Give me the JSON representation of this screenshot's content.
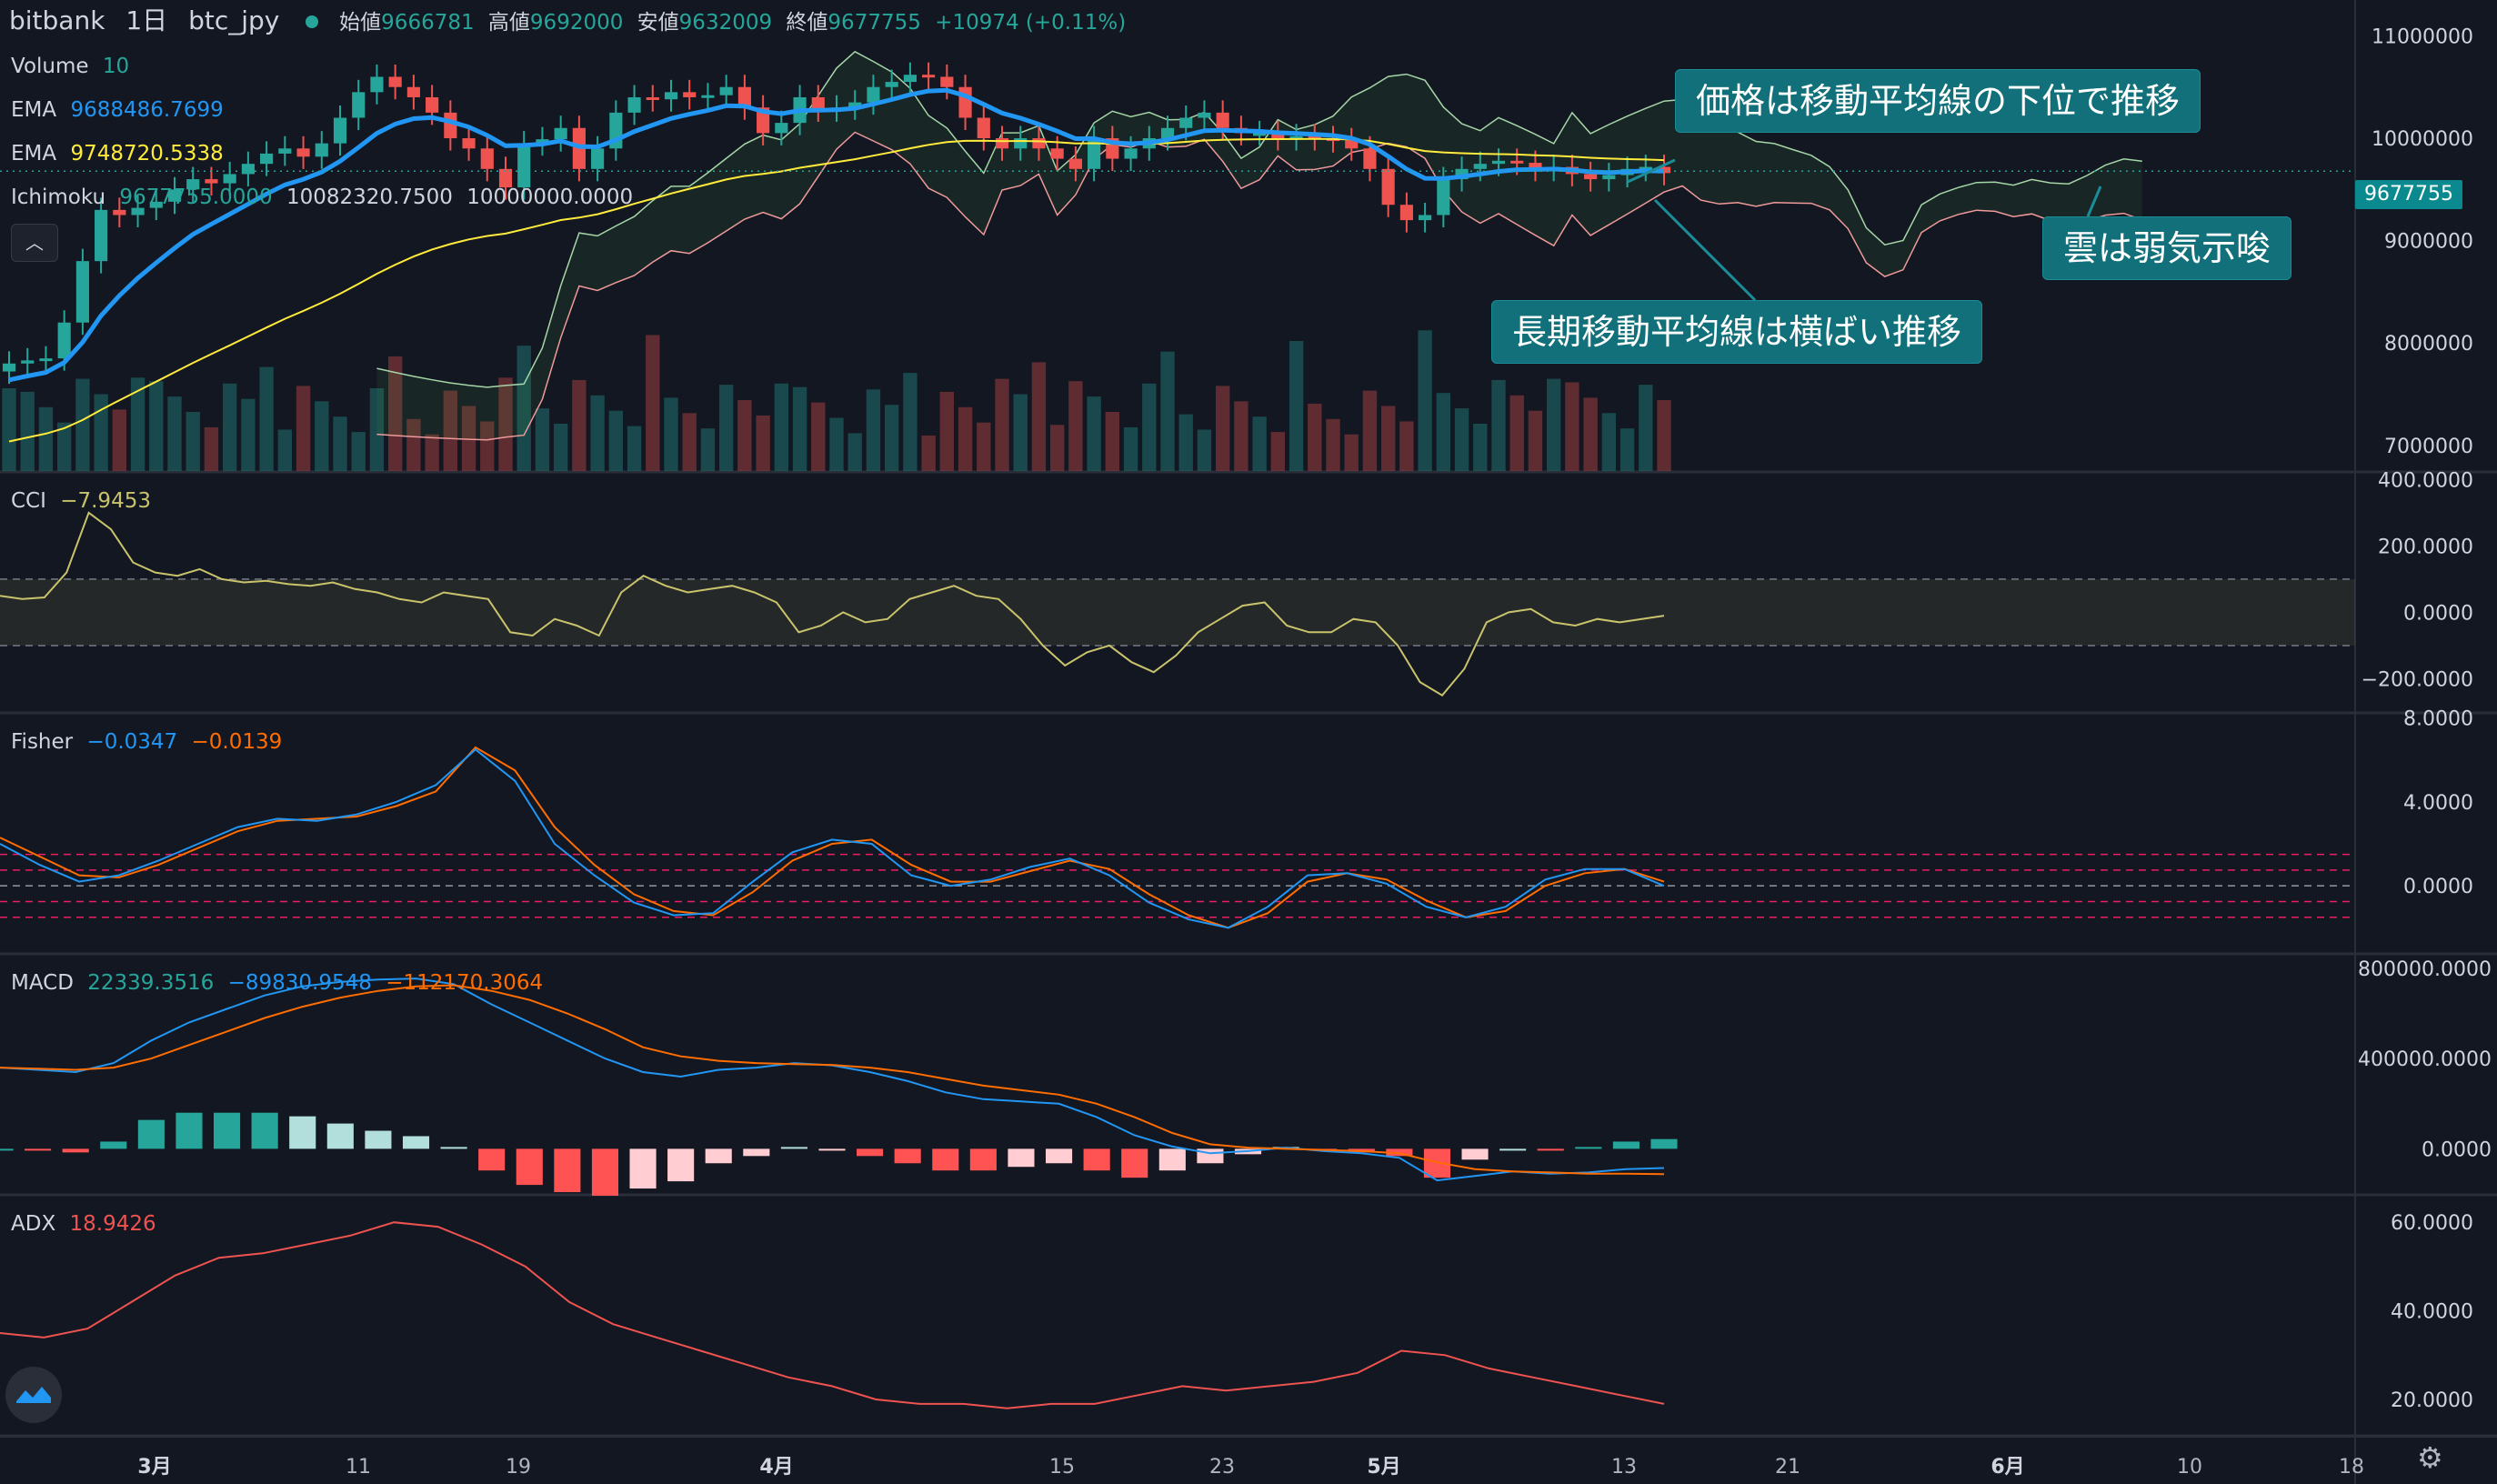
{
  "header": {
    "exchange": "bitbank",
    "interval": "1日",
    "symbol": "btc_jpy",
    "open_label": "始値",
    "open": "9666781",
    "high_label": "高値",
    "high": "9692000",
    "low_label": "安値",
    "low": "9632009",
    "close_label": "終値",
    "close": "9677755",
    "change": "+10974 (+0.11%)"
  },
  "legend": {
    "volume_label": "Volume",
    "volume_value": "10",
    "ema1_label": "EMA",
    "ema1_value": "9688486.7699",
    "ema2_label": "EMA",
    "ema2_value": "9748720.5338",
    "ichimoku_label": "Ichimoku",
    "ichimoku_v1": "9677755.0000",
    "ichimoku_v2": "10082320.7500",
    "ichimoku_v3": "10000000.0000",
    "cci_label": "CCI",
    "cci_value": "−7.9453",
    "fisher_label": "Fisher",
    "fisher_v1": "−0.0347",
    "fisher_v2": "−0.0139",
    "macd_label": "MACD",
    "macd_v1": "22339.3516",
    "macd_v2": "−89830.9548",
    "macd_v3": "−112170.3064",
    "adx_label": "ADX",
    "adx_value": "18.9426"
  },
  "annotations": {
    "a1": "価格は移動平均線の下位で推移",
    "a2": "雲は弱気示唆",
    "a3": "長期移動平均線は横ばい推移"
  },
  "last_price_tag": "9677755",
  "colors": {
    "background": "#131722",
    "up": "#26a69a",
    "down": "#ef5350",
    "ema_fast": "#2196f3",
    "ema_slow": "#ffeb3b",
    "cci": "#c9c36b",
    "fisher1": "#2196f3",
    "fisher2": "#ff6d00",
    "adx": "#ef5350",
    "callout": "#11707a"
  },
  "chart_data": {
    "type": "candlestick",
    "x_ticks": [
      "3月",
      "11",
      "19",
      "4月",
      "15",
      "23",
      "5月",
      "13",
      "21",
      "6月",
      "10",
      "18"
    ],
    "price_axis": [
      "11000000",
      "10000000",
      "9000000",
      "8000000",
      "7000000"
    ],
    "close": [
      7800000,
      7830000,
      7850000,
      8200000,
      8800000,
      9300000,
      9250000,
      9320000,
      9380000,
      9500000,
      9600000,
      9560000,
      9650000,
      9750000,
      9850000,
      9900000,
      9820000,
      9950000,
      10200000,
      10450000,
      10600000,
      10500000,
      10400000,
      10250000,
      10000000,
      9900000,
      9700000,
      9520000,
      9950000,
      9990000,
      10100000,
      9700000,
      9900000,
      10250000,
      10400000,
      10380000,
      10450000,
      10400000,
      10420000,
      10500000,
      10300000,
      10050000,
      10150000,
      10400000,
      10280000,
      10300000,
      10350000,
      10500000,
      10550000,
      10620000,
      10600000,
      10500000,
      10200000,
      10000000,
      9900000,
      10000000,
      9900000,
      9800000,
      9700000,
      10000000,
      9800000,
      9900000,
      10000000,
      10100000,
      10200000,
      10250000,
      10100000,
      10050000,
      10050000,
      10000000,
      10020000,
      10000000,
      9980000,
      9900000,
      9700000,
      9350000,
      9200000,
      9250000,
      9600000,
      9700000,
      9750000,
      9780000,
      9760000,
      9700000,
      9720000,
      9650000,
      9600000,
      9640000,
      9700000,
      9720000,
      9660000
    ],
    "ema_fast_end": 9688487,
    "ema_slow_end": 9748721,
    "cci_axis": [
      "400.0000",
      "200.0000",
      "0.0000",
      "−200.0000"
    ],
    "cci_band": [
      100,
      -100
    ],
    "cci": [
      50,
      40,
      45,
      120,
      300,
      250,
      150,
      120,
      110,
      130,
      100,
      90,
      95,
      85,
      80,
      90,
      70,
      60,
      40,
      30,
      60,
      50,
      40,
      -60,
      -70,
      -20,
      -40,
      -70,
      60,
      110,
      80,
      60,
      70,
      80,
      60,
      30,
      -60,
      -40,
      0,
      -30,
      -20,
      40,
      60,
      80,
      50,
      40,
      -20,
      -100,
      -160,
      -120,
      -100,
      -150,
      -180,
      -130,
      -60,
      -20,
      20,
      30,
      -40,
      -60,
      -60,
      -20,
      -30,
      -100,
      -210,
      -250,
      -170,
      -30,
      0,
      10,
      -30,
      -40,
      -20,
      -30,
      -20,
      -10
    ],
    "fisher_axis": [
      "8.0000",
      "4.0000",
      "0.0000"
    ],
    "fisher_levels": [
      1.5,
      0.75,
      0,
      -0.75,
      -1.5
    ],
    "fisher": [
      2.0,
      1.0,
      0.2,
      0.5,
      1.2,
      2.0,
      2.8,
      3.2,
      3.1,
      3.4,
      4.0,
      4.8,
      6.5,
      5.0,
      2.0,
      0.5,
      -0.8,
      -1.4,
      -1.3,
      0.2,
      1.6,
      2.2,
      2.0,
      0.5,
      0.0,
      0.3,
      0.9,
      1.3,
      0.5,
      -0.8,
      -1.6,
      -2.0,
      -1.0,
      0.5,
      0.6,
      0.1,
      -1.0,
      -1.5,
      -1.0,
      0.3,
      0.8,
      0.8,
      0.0
    ],
    "fisher_signal": [
      2.3,
      1.4,
      0.5,
      0.4,
      1.0,
      1.8,
      2.6,
      3.1,
      3.2,
      3.3,
      3.8,
      4.5,
      6.6,
      5.5,
      2.8,
      1.0,
      -0.4,
      -1.2,
      -1.4,
      -0.3,
      1.2,
      2.0,
      2.2,
      1.0,
      0.2,
      0.2,
      0.7,
      1.2,
      0.8,
      -0.4,
      -1.4,
      -2.0,
      -1.3,
      0.2,
      0.6,
      0.3,
      -0.7,
      -1.5,
      -1.2,
      0.0,
      0.6,
      0.8,
      0.2
    ],
    "macd_axis": [
      "800000.0000",
      "400000.0000",
      "0.0000"
    ],
    "macd": [
      360000,
      350000,
      340000,
      380000,
      480000,
      560000,
      620000,
      680000,
      720000,
      740000,
      750000,
      755000,
      730000,
      640000,
      560000,
      480000,
      400000,
      340000,
      320000,
      350000,
      360000,
      380000,
      370000,
      340000,
      300000,
      250000,
      220000,
      210000,
      200000,
      140000,
      60000,
      10000,
      -20000,
      -10000,
      5000,
      -10000,
      -20000,
      -40000,
      -140000,
      -120000,
      -100000,
      -110000,
      -105000,
      -90000,
      -85000
    ],
    "macd_signal": [
      360000,
      355000,
      350000,
      360000,
      400000,
      460000,
      520000,
      580000,
      630000,
      670000,
      700000,
      720000,
      725000,
      700000,
      660000,
      600000,
      530000,
      450000,
      410000,
      390000,
      380000,
      375000,
      372000,
      360000,
      340000,
      310000,
      280000,
      260000,
      240000,
      200000,
      140000,
      70000,
      20000,
      5000,
      0,
      -5000,
      -10000,
      -20000,
      -60000,
      -90000,
      -100000,
      -105000,
      -110000,
      -110000,
      -112000
    ],
    "adx_axis": [
      "60.0000",
      "40.0000",
      "20.0000"
    ],
    "adx": [
      35,
      34,
      36,
      42,
      48,
      52,
      53,
      55,
      57,
      60,
      59,
      55,
      50,
      42,
      37,
      34,
      31,
      28,
      25,
      23,
      20,
      19,
      19,
      18,
      19,
      19,
      21,
      23,
      22,
      23,
      24,
      26,
      31,
      30,
      27,
      25,
      23,
      21,
      19
    ]
  }
}
